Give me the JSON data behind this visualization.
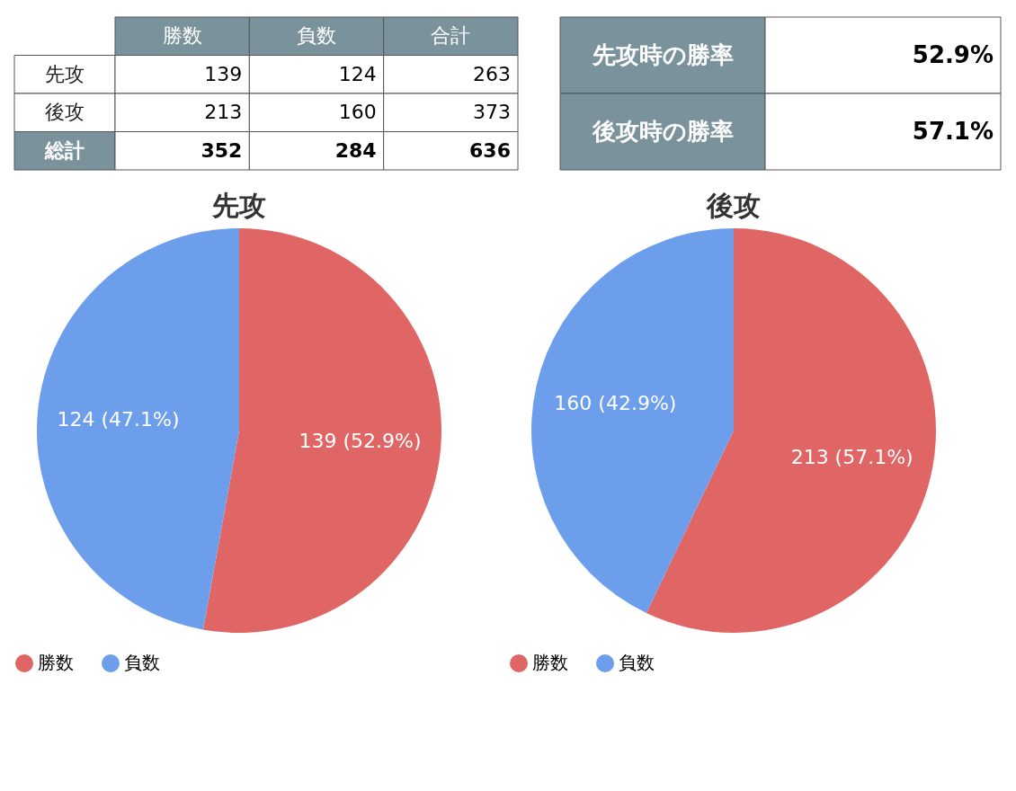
{
  "chart_data": [
    {
      "type": "other",
      "categories": [
        "勝数",
        "負数",
        "合計"
      ],
      "y_categories": [
        "先攻",
        "後攻",
        "総計"
      ],
      "cells": [
        [
          "139",
          "124",
          "263"
        ],
        [
          "213",
          "160",
          "373"
        ],
        [
          "352",
          "284",
          "636"
        ]
      ]
    },
    {
      "type": "other",
      "y_categories": [
        "先攻時の勝率",
        "後攻時の勝率"
      ],
      "cells": [
        [
          "52.9%"
        ],
        [
          "57.1%"
        ]
      ]
    },
    {
      "type": "pie",
      "title": "先攻",
      "categories": [
        "勝数",
        "負数"
      ],
      "values": [
        139,
        124
      ],
      "colors": [
        "#e06666",
        "#6d9eeb"
      ],
      "value_labels": [
        "139 (52.9%)",
        "124 (47.1%)"
      ],
      "legend": "bottom"
    },
    {
      "type": "pie",
      "title": "後攻",
      "categories": [
        "勝数",
        "負数"
      ],
      "values": [
        213,
        160
      ],
      "colors": [
        "#e06666",
        "#6d9eeb"
      ],
      "value_labels": [
        "213 (57.1%)",
        "160 (42.9%)"
      ],
      "legend": "bottom"
    }
  ]
}
